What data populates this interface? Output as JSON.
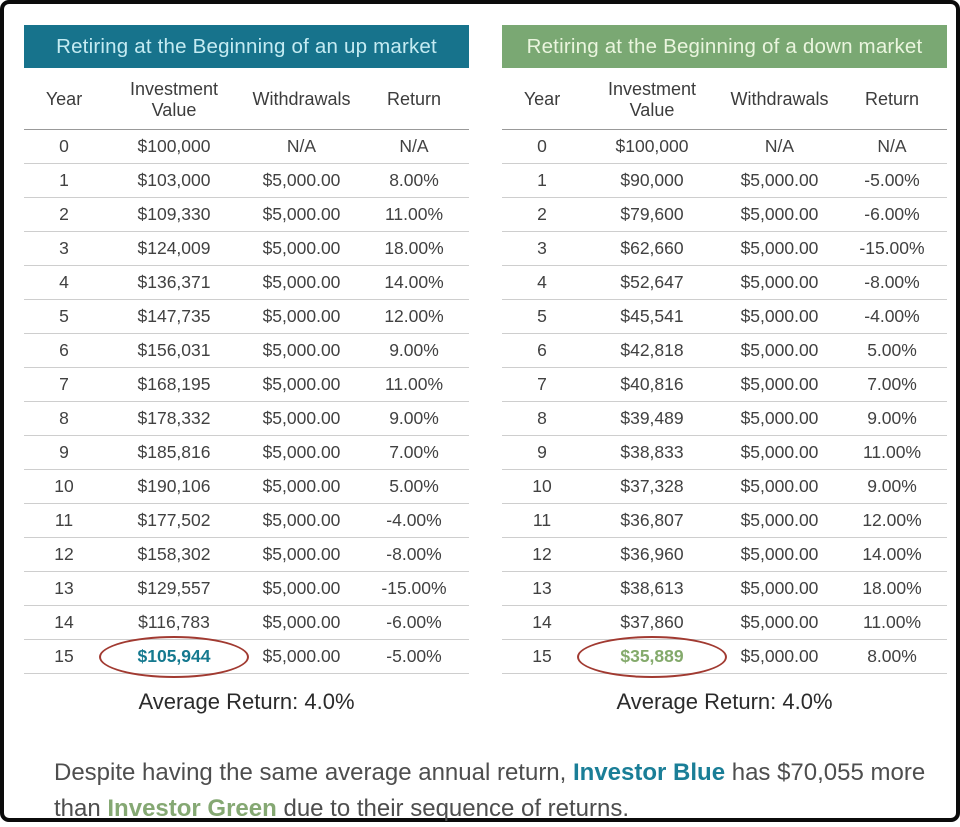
{
  "colors": {
    "teal_header_bg": "#17738c",
    "teal_header_text": "#c4ebf2",
    "green_header_bg": "#7aa873",
    "green_header_text": "#eaf5de",
    "highlight_teal_value": "#15798f",
    "highlight_green_value": "#84aa6c",
    "highlight_circle_red": "#a13a31",
    "body_text": "#414141"
  },
  "chart_data": [
    {
      "type": "table",
      "title": "Retiring at the Beginning of an up market",
      "theme": "teal",
      "columns": [
        "Year",
        "Investment Value",
        "Withdrawals",
        "Return"
      ],
      "rows": [
        [
          "0",
          "$100,000",
          "N/A",
          "N/A"
        ],
        [
          "1",
          "$103,000",
          "$5,000.00",
          "8.00%"
        ],
        [
          "2",
          "$109,330",
          "$5,000.00",
          "11.00%"
        ],
        [
          "3",
          "$124,009",
          "$5,000.00",
          "18.00%"
        ],
        [
          "4",
          "$136,371",
          "$5,000.00",
          "14.00%"
        ],
        [
          "5",
          "$147,735",
          "$5,000.00",
          "12.00%"
        ],
        [
          "6",
          "$156,031",
          "$5,000.00",
          "9.00%"
        ],
        [
          "7",
          "$168,195",
          "$5,000.00",
          "11.00%"
        ],
        [
          "8",
          "$178,332",
          "$5,000.00",
          "9.00%"
        ],
        [
          "9",
          "$185,816",
          "$5,000.00",
          "7.00%"
        ],
        [
          "10",
          "$190,106",
          "$5,000.00",
          "5.00%"
        ],
        [
          "11",
          "$177,502",
          "$5,000.00",
          "-4.00%"
        ],
        [
          "12",
          "$158,302",
          "$5,000.00",
          "-8.00%"
        ],
        [
          "13",
          "$129,557",
          "$5,000.00",
          "-15.00%"
        ],
        [
          "14",
          "$116,783",
          "$5,000.00",
          "-6.00%"
        ],
        [
          "15",
          "$105,944",
          "$5,000.00",
          "-5.00%"
        ]
      ],
      "highlight": {
        "row": 15,
        "column": "Investment Value",
        "value": "$105,944"
      },
      "average_return_label": "Average Return: 4.0%"
    },
    {
      "type": "table",
      "title": "Retiring at the Beginning of  a down market",
      "theme": "green",
      "columns": [
        "Year",
        "Investment Value",
        "Withdrawals",
        "Return"
      ],
      "rows": [
        [
          "0",
          "$100,000",
          "N/A",
          "N/A"
        ],
        [
          "1",
          "$90,000",
          "$5,000.00",
          "-5.00%"
        ],
        [
          "2",
          "$79,600",
          "$5,000.00",
          "-6.00%"
        ],
        [
          "3",
          "$62,660",
          "$5,000.00",
          "-15.00%"
        ],
        [
          "4",
          "$52,647",
          "$5,000.00",
          "-8.00%"
        ],
        [
          "5",
          "$45,541",
          "$5,000.00",
          "-4.00%"
        ],
        [
          "6",
          "$42,818",
          "$5,000.00",
          "5.00%"
        ],
        [
          "7",
          "$40,816",
          "$5,000.00",
          "7.00%"
        ],
        [
          "8",
          "$39,489",
          "$5,000.00",
          "9.00%"
        ],
        [
          "9",
          "$38,833",
          "$5,000.00",
          "11.00%"
        ],
        [
          "10",
          "$37,328",
          "$5,000.00",
          "9.00%"
        ],
        [
          "11",
          "$36,807",
          "$5,000.00",
          "12.00%"
        ],
        [
          "12",
          "$36,960",
          "$5,000.00",
          "14.00%"
        ],
        [
          "13",
          "$38,613",
          "$5,000.00",
          "18.00%"
        ],
        [
          "14",
          "$37,860",
          "$5,000.00",
          "11.00%"
        ],
        [
          "15",
          "$35,889",
          "$5,000.00",
          "8.00%"
        ]
      ],
      "highlight": {
        "row": 15,
        "column": "Investment Value",
        "value": "$35,889"
      },
      "average_return_label": "Average Return: 4.0%"
    }
  ],
  "summary": {
    "text_before": "Despite having the same average annual return, ",
    "investor_blue": "Investor Blue",
    "text_middle": " has $70,055 more than ",
    "investor_green": "Investor Green",
    "text_after": " due to their sequence of returns."
  }
}
